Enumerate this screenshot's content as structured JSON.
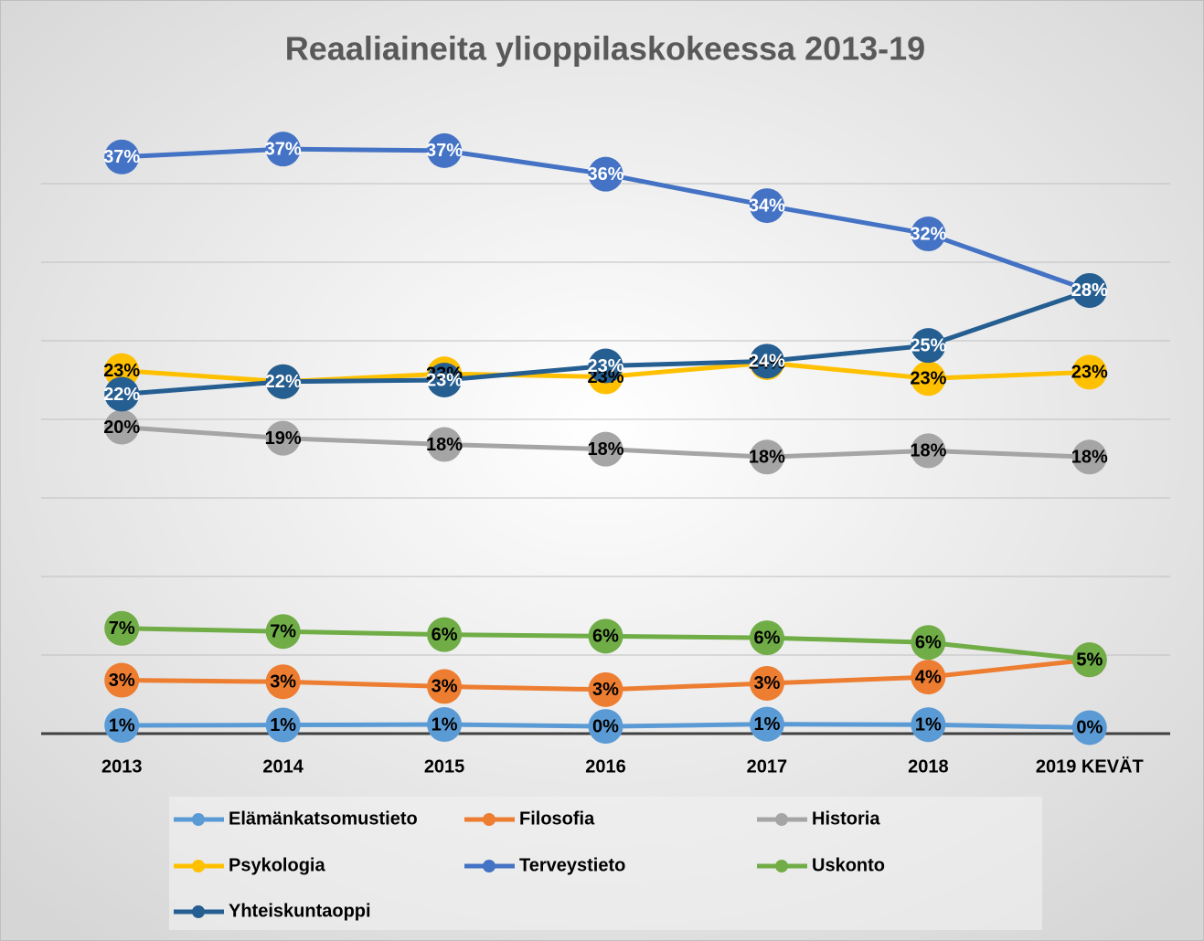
{
  "chart_data": {
    "type": "line",
    "title": "Reaaliaineita ylioppilaskokeessa 2013-19",
    "categories": [
      "2013",
      "2014",
      "2015",
      "2016",
      "2017",
      "2018",
      "2019 KEVÄT"
    ],
    "ylim": [
      0,
      40
    ],
    "yticks": [
      0,
      5,
      10,
      15,
      20,
      25,
      30,
      35
    ],
    "grid": true,
    "legend": "bottom",
    "series": [
      {
        "name": "Elämänkatsomustieto",
        "color": "#5b9bd5",
        "values": [
          0.52,
          0.55,
          0.58,
          0.46,
          0.6,
          0.57,
          0.38
        ],
        "value_labels": [
          "1%",
          "1%",
          "1%",
          "0%",
          "1%",
          "1%",
          "0%"
        ]
      },
      {
        "name": "Filosofia",
        "color": "#ed7d31",
        "values": [
          3.4,
          3.3,
          3.0,
          2.8,
          3.2,
          3.6,
          4.7
        ],
        "value_labels": [
          "3%",
          "3%",
          "3%",
          "3%",
          "3%",
          "4%",
          "5%"
        ]
      },
      {
        "name": "Historia",
        "color": "#a5a5a5",
        "values": [
          19.5,
          18.8,
          18.4,
          18.1,
          17.6,
          18.0,
          17.6
        ],
        "value_labels": [
          "20%",
          "19%",
          "18%",
          "18%",
          "18%",
          "18%",
          "18%"
        ]
      },
      {
        "name": "Psykologia",
        "color": "#ffc000",
        "values": [
          23.1,
          22.4,
          22.9,
          22.7,
          23.6,
          22.6,
          23.0
        ],
        "value_labels": [
          "23%",
          "22%",
          "23%",
          "23%",
          "24%",
          "23%",
          "23%"
        ]
      },
      {
        "name": "Terveystieto",
        "color": "#4472c4",
        "values": [
          36.7,
          37.2,
          37.1,
          35.6,
          33.6,
          31.8,
          28.2
        ],
        "value_labels": [
          "37%",
          "37%",
          "37%",
          "36%",
          "34%",
          "32%",
          "28%"
        ]
      },
      {
        "name": "Uskonto",
        "color": "#70ad47",
        "values": [
          6.7,
          6.5,
          6.3,
          6.2,
          6.1,
          5.8,
          4.7
        ],
        "value_labels": [
          "7%",
          "7%",
          "6%",
          "6%",
          "6%",
          "6%",
          "5%"
        ]
      },
      {
        "name": "Yhteiskuntaoppi",
        "color": "#255e91",
        "values": [
          21.6,
          22.4,
          22.5,
          23.4,
          23.7,
          24.7,
          28.2
        ],
        "value_labels": [
          "22%",
          "22%",
          "23%",
          "23%",
          "24%",
          "25%",
          "28%"
        ]
      }
    ]
  }
}
